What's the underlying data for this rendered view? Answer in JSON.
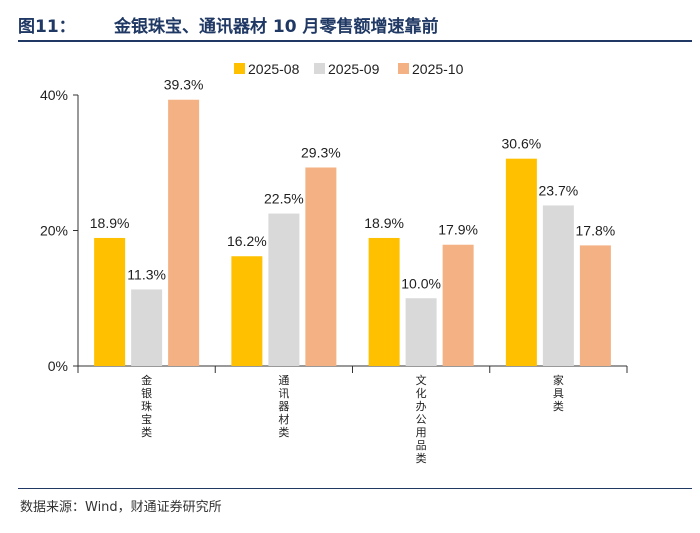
{
  "header": {
    "figure_label": "图11：",
    "title": "金银珠宝、通讯器材 10 月零售额增速靠前"
  },
  "source": "数据来源：Wind，财通证券研究所",
  "chart_data": {
    "type": "bar",
    "title": "金银珠宝、通讯器材 10 月零售额增速靠前",
    "xlabel": "",
    "ylabel": "",
    "ylim": [
      0,
      40
    ],
    "yticks": [
      "0%",
      "20%",
      "40%"
    ],
    "categories": [
      "金银珠宝类",
      "通讯器材类",
      "文化办公用品类",
      "家具类"
    ],
    "series": [
      {
        "name": "2025-08",
        "color": "#FFC000",
        "values": [
          18.9,
          16.2,
          18.9,
          30.6
        ],
        "labels": [
          "18.9%",
          "16.2%",
          "18.9%",
          "30.6%"
        ]
      },
      {
        "name": "2025-09",
        "color": "#D9D9D9",
        "values": [
          11.3,
          22.5,
          10.0,
          23.7
        ],
        "labels": [
          "11.3%",
          "22.5%",
          "10.0%",
          "23.7%"
        ]
      },
      {
        "name": "2025-10",
        "color": "#F4B183",
        "values": [
          39.3,
          29.3,
          17.9,
          17.8
        ],
        "labels": [
          "39.3%",
          "29.3%",
          "17.9%",
          "17.8%"
        ]
      }
    ],
    "legend_position": "top"
  }
}
